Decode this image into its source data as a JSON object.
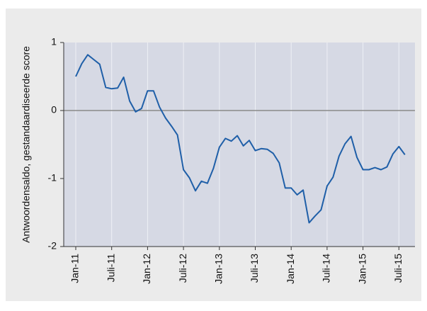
{
  "chart_data": {
    "type": "line",
    "y_label": "Antwoordensaldo, gestandaardiseerde score",
    "categories": [
      "Jan-11",
      null,
      null,
      null,
      null,
      null,
      "Juli-11",
      null,
      null,
      null,
      null,
      null,
      "Jan-12",
      null,
      null,
      null,
      null,
      null,
      "Juli-12",
      null,
      null,
      null,
      null,
      null,
      "Jan-13",
      null,
      null,
      null,
      null,
      null,
      "Juli-13",
      null,
      null,
      null,
      null,
      null,
      "Jan-14",
      null,
      null,
      null,
      null,
      null,
      "Juli-14",
      null,
      null,
      null,
      null,
      null,
      "Jan-15",
      null,
      null,
      null,
      null,
      null,
      "Juli-15",
      null
    ],
    "series": [
      {
        "color": "#1f5fa8",
        "values": [
          0.5,
          0.69,
          0.82,
          0.75,
          0.68,
          0.34,
          0.32,
          0.33,
          0.49,
          0.14,
          -0.02,
          0.03,
          0.29,
          0.29,
          0.05,
          -0.11,
          -0.23,
          -0.36,
          -0.87,
          -0.99,
          -1.18,
          -1.04,
          -1.07,
          -0.85,
          -0.54,
          -0.41,
          -0.45,
          -0.37,
          -0.52,
          -0.44,
          -0.59,
          -0.56,
          -0.57,
          -0.63,
          -0.77,
          -1.14,
          -1.14,
          -1.24,
          -1.17,
          -1.65,
          -1.55,
          -1.46,
          -1.11,
          -0.98,
          -0.67,
          -0.49,
          -0.38,
          -0.69,
          -0.87,
          -0.87,
          -0.84,
          -0.87,
          -0.83,
          -0.64,
          -0.53,
          -0.65
        ]
      }
    ],
    "ylim": [
      -2,
      1
    ],
    "yticks": [
      -2,
      -1,
      0,
      1
    ],
    "reference_line": 0,
    "xgrid": true
  }
}
